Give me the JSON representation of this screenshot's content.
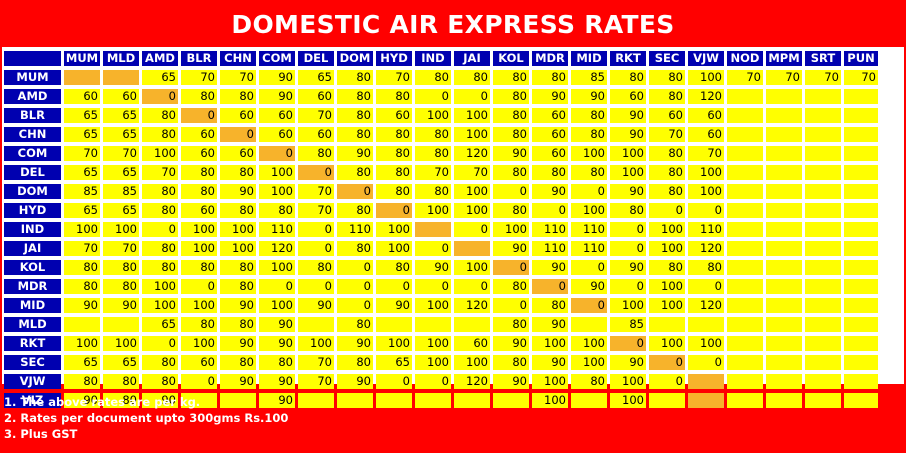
{
  "title": "DOMESTIC AIR EXPRESS RATES",
  "columns": [
    "MUM",
    "MLD",
    "AMD",
    "BLR",
    "CHN",
    "COM",
    "DEL",
    "DOM",
    "HYD",
    "IND",
    "JAI",
    "KOL",
    "MDR",
    "MID",
    "RKT",
    "SEC",
    "VJW",
    "NOD",
    "MPM",
    "SRT",
    "PUN"
  ],
  "rows": [
    {
      "label": "MUM",
      "cells": [
        "",
        "",
        "65",
        "70",
        "70",
        "90",
        "65",
        "80",
        "70",
        "80",
        "80",
        "80",
        "80",
        "85",
        "80",
        "80",
        "100",
        "70",
        "70",
        "70",
        "70"
      ],
      "highlight": [
        0,
        1
      ]
    },
    {
      "label": "AMD",
      "cells": [
        "60",
        "60",
        "0",
        "80",
        "80",
        "90",
        "60",
        "80",
        "80",
        "0",
        "0",
        "80",
        "90",
        "90",
        "60",
        "80",
        "120",
        "",
        "",
        "",
        ""
      ],
      "highlight": [
        2
      ]
    },
    {
      "label": "BLR",
      "cells": [
        "65",
        "65",
        "80",
        "0",
        "60",
        "60",
        "70",
        "80",
        "60",
        "100",
        "100",
        "80",
        "60",
        "80",
        "90",
        "60",
        "60",
        "",
        "",
        "",
        ""
      ],
      "highlight": [
        3
      ]
    },
    {
      "label": "CHN",
      "cells": [
        "65",
        "65",
        "80",
        "60",
        "0",
        "60",
        "60",
        "80",
        "80",
        "80",
        "100",
        "80",
        "60",
        "80",
        "90",
        "70",
        "60",
        "",
        "",
        "",
        ""
      ],
      "highlight": [
        4
      ]
    },
    {
      "label": "COM",
      "cells": [
        "70",
        "70",
        "100",
        "60",
        "60",
        "0",
        "80",
        "90",
        "80",
        "80",
        "120",
        "90",
        "60",
        "100",
        "100",
        "80",
        "70",
        "",
        "",
        "",
        ""
      ],
      "highlight": [
        5
      ]
    },
    {
      "label": "DEL",
      "cells": [
        "65",
        "65",
        "70",
        "80",
        "80",
        "100",
        "0",
        "80",
        "80",
        "70",
        "70",
        "80",
        "80",
        "80",
        "100",
        "80",
        "100",
        "",
        "",
        "",
        ""
      ],
      "highlight": [
        6
      ]
    },
    {
      "label": "DOM",
      "cells": [
        "85",
        "85",
        "80",
        "80",
        "90",
        "100",
        "70",
        "0",
        "80",
        "80",
        "100",
        "0",
        "90",
        "0",
        "90",
        "80",
        "100",
        "",
        "",
        "",
        ""
      ],
      "highlight": [
        7
      ]
    },
    {
      "label": "HYD",
      "cells": [
        "65",
        "65",
        "80",
        "60",
        "80",
        "80",
        "70",
        "80",
        "0",
        "100",
        "100",
        "80",
        "0",
        "100",
        "80",
        "0",
        "0",
        "",
        "",
        "",
        ""
      ],
      "highlight": [
        8
      ]
    },
    {
      "label": "IND",
      "cells": [
        "100",
        "100",
        "0",
        "100",
        "100",
        "110",
        "0",
        "110",
        "100",
        "",
        "0",
        "100",
        "110",
        "110",
        "0",
        "100",
        "110",
        "",
        "",
        "",
        ""
      ],
      "highlight": [
        9
      ]
    },
    {
      "label": "JAI",
      "cells": [
        "70",
        "70",
        "80",
        "100",
        "100",
        "120",
        "0",
        "80",
        "100",
        "0",
        "",
        "90",
        "110",
        "110",
        "0",
        "100",
        "120",
        "",
        "",
        "",
        ""
      ],
      "highlight": [
        10
      ]
    },
    {
      "label": "KOL",
      "cells": [
        "80",
        "80",
        "80",
        "80",
        "80",
        "100",
        "80",
        "0",
        "80",
        "90",
        "100",
        "0",
        "90",
        "0",
        "90",
        "80",
        "80",
        "",
        "",
        "",
        ""
      ],
      "highlight": [
        11
      ]
    },
    {
      "label": "MDR",
      "cells": [
        "80",
        "80",
        "100",
        "0",
        "80",
        "0",
        "0",
        "0",
        "0",
        "0",
        "0",
        "80",
        "0",
        "90",
        "0",
        "100",
        "0",
        "",
        "",
        "",
        ""
      ],
      "highlight": [
        12
      ]
    },
    {
      "label": "MID",
      "cells": [
        "90",
        "90",
        "100",
        "100",
        "90",
        "100",
        "90",
        "0",
        "90",
        "100",
        "120",
        "0",
        "80",
        "0",
        "100",
        "100",
        "120",
        "",
        "",
        "",
        ""
      ],
      "highlight": [
        13
      ]
    },
    {
      "label": "MLD",
      "cells": [
        "",
        "",
        "65",
        "80",
        "80",
        "90",
        "",
        "80",
        "",
        "",
        "",
        "80",
        "90",
        "",
        "85",
        "",
        "",
        "",
        "",
        "",
        ""
      ],
      "highlight": []
    },
    {
      "label": "RKT",
      "cells": [
        "100",
        "100",
        "0",
        "100",
        "90",
        "90",
        "100",
        "90",
        "100",
        "100",
        "60",
        "90",
        "100",
        "100",
        "0",
        "100",
        "100",
        "",
        "",
        "",
        ""
      ],
      "highlight": [
        14
      ]
    },
    {
      "label": "SEC",
      "cells": [
        "65",
        "65",
        "80",
        "60",
        "80",
        "80",
        "70",
        "80",
        "65",
        "100",
        "100",
        "80",
        "90",
        "100",
        "90",
        "0",
        "0",
        "",
        "",
        "",
        ""
      ],
      "highlight": [
        15
      ]
    },
    {
      "label": "VJW",
      "cells": [
        "80",
        "80",
        "80",
        "0",
        "90",
        "90",
        "70",
        "90",
        "0",
        "0",
        "120",
        "90",
        "100",
        "80",
        "100",
        "0",
        "",
        "",
        "",
        "",
        ""
      ],
      "highlight": [
        16
      ]
    },
    {
      "label": "VIZ",
      "cells": [
        "90",
        "80",
        "90",
        "",
        "",
        "90",
        "",
        "",
        "",
        "",
        "",
        "",
        "100",
        "",
        "100",
        "",
        "",
        "",
        "",
        "",
        ""
      ],
      "highlight": [
        16
      ]
    }
  ],
  "notes": [
    "1. The above rates are per kg.",
    "2. Rates per document upto 300gms Rs.100",
    "3. Plus GST"
  ],
  "colors": {
    "background": "#ff0000",
    "header": "#0000b0",
    "cell": "#ffff00",
    "diagonal": "#f7b32b"
  }
}
